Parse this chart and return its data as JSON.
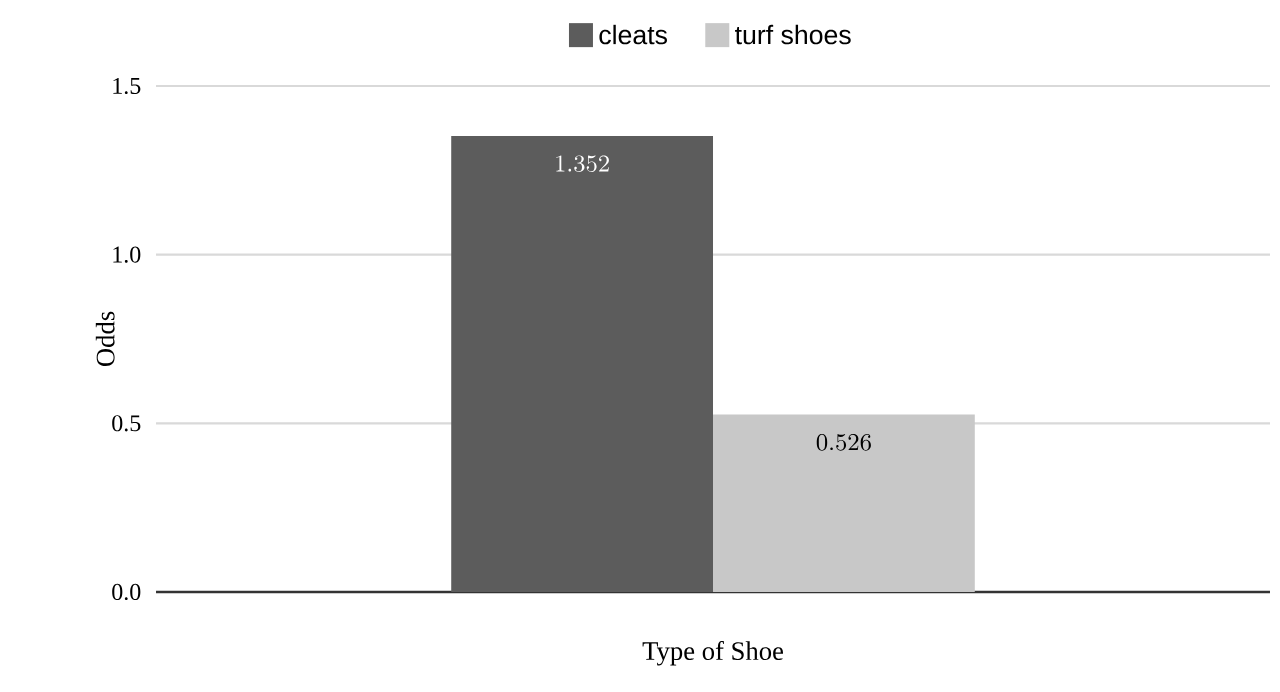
{
  "chart_data": {
    "type": "bar",
    "xlabel": "Type of Shoe",
    "ylabel": "Odds",
    "categories": [
      null
    ],
    "series": [
      {
        "name": "cleats",
        "color": "#5c5c5c",
        "values": [
          1.352
        ]
      },
      {
        "name": "turf shoes",
        "color": "#c8c8c8",
        "values": [
          0.526
        ]
      }
    ],
    "ylim": [
      0,
      1.5
    ],
    "yticks": [
      {
        "value": 0,
        "label": "0.0"
      },
      0.5,
      {
        "value": 1,
        "label": "1.0"
      },
      1.5
    ],
    "grid": "y",
    "legend": "top",
    "data_labels": true
  }
}
